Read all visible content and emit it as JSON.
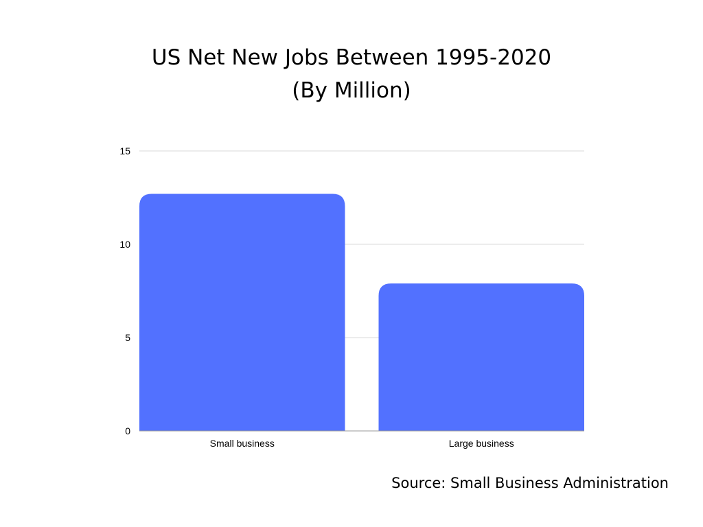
{
  "title_line1": "US Net New Jobs Between 1995-2020",
  "title_line2": "(By Million)",
  "source": "Source: Small Business Administration",
  "chart_data": {
    "type": "bar",
    "categories": [
      "Small business",
      "Large business"
    ],
    "values": [
      12.7,
      7.9
    ],
    "ylim": [
      0,
      15
    ],
    "yticks": [
      0,
      5,
      10,
      15
    ],
    "grid": true,
    "bar_color": "#5271ff",
    "grid_color": "#d9d9d9"
  }
}
